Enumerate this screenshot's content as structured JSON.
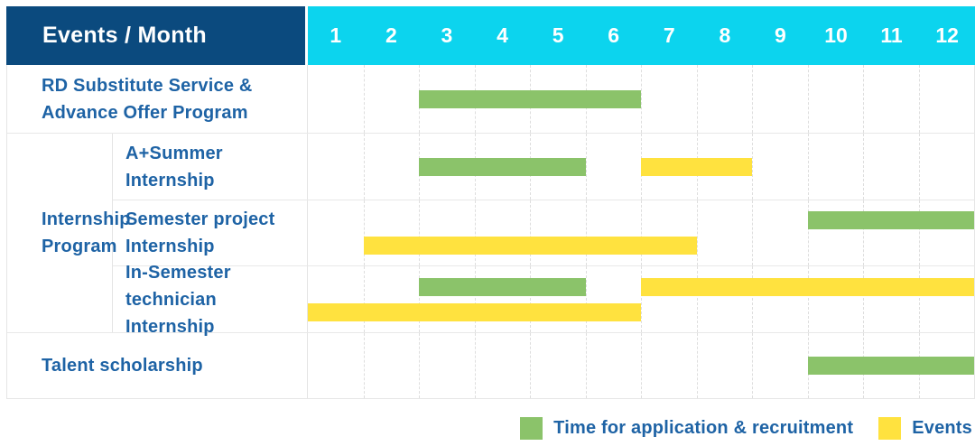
{
  "chart_data": {
    "type": "table",
    "subtype": "gantt-schedule",
    "title": "Events / Month",
    "months": [
      "1",
      "2",
      "3",
      "4",
      "5",
      "6",
      "7",
      "8",
      "9",
      "10",
      "11",
      "12"
    ],
    "month_axis": {
      "min": 1,
      "max": 12,
      "unit": "month"
    },
    "legend": [
      {
        "label": "Time for application & recruitment",
        "color": "#8bc36a",
        "bar_class": "green"
      },
      {
        "label": "Events",
        "color": "#ffe23f",
        "bar_class": "yellow"
      }
    ],
    "rows": [
      {
        "label": [
          "RD Substitute Service &",
          "Advance Offer Program"
        ],
        "lines": 1,
        "bars": [
          {
            "type": "Time for application & recruitment",
            "color": "green",
            "from_month": 3,
            "to_month": 6,
            "line": 0
          }
        ]
      },
      {
        "group": [
          "Internship",
          "Program"
        ],
        "subrows": [
          {
            "label": [
              "A+Summer",
              "Internship"
            ],
            "lines": 1,
            "bars": [
              {
                "type": "Time for application & recruitment",
                "color": "green",
                "from_month": 3,
                "to_month": 5,
                "line": 0
              },
              {
                "type": "Events",
                "color": "yellow",
                "from_month": 7,
                "to_month": 8,
                "line": 0
              }
            ]
          },
          {
            "label": [
              "Semester project",
              "Internship"
            ],
            "lines": 2,
            "bars": [
              {
                "type": "Time for application & recruitment",
                "color": "green",
                "from_month": 10,
                "to_month": 12,
                "line": 0
              },
              {
                "type": "Events",
                "color": "yellow",
                "from_month": 2,
                "to_month": 7,
                "line": 1
              }
            ]
          },
          {
            "label": [
              "In-Semester",
              "technician Internship"
            ],
            "lines": 2,
            "bars": [
              {
                "type": "Time for application & recruitment",
                "color": "green",
                "from_month": 3,
                "to_month": 5,
                "line": 0
              },
              {
                "type": "Events",
                "color": "yellow",
                "from_month": 7,
                "to_month": 12,
                "line": 0
              },
              {
                "type": "Events",
                "color": "yellow",
                "from_month": 1,
                "to_month": 6,
                "line": 1
              }
            ]
          }
        ]
      },
      {
        "label": [
          "Talent scholarship"
        ],
        "lines": 1,
        "bars": [
          {
            "type": "Time for application & recruitment",
            "color": "green",
            "from_month": 10,
            "to_month": 12,
            "line": 0
          }
        ]
      }
    ]
  },
  "colors": {
    "header_navy": "#0b4a7e",
    "header_cyan": "#0cd4ee",
    "bar_green": "#8bc36a",
    "bar_yellow": "#ffe23f",
    "label_blue": "#1e63a5",
    "grid_line": "#e6e6e6"
  }
}
